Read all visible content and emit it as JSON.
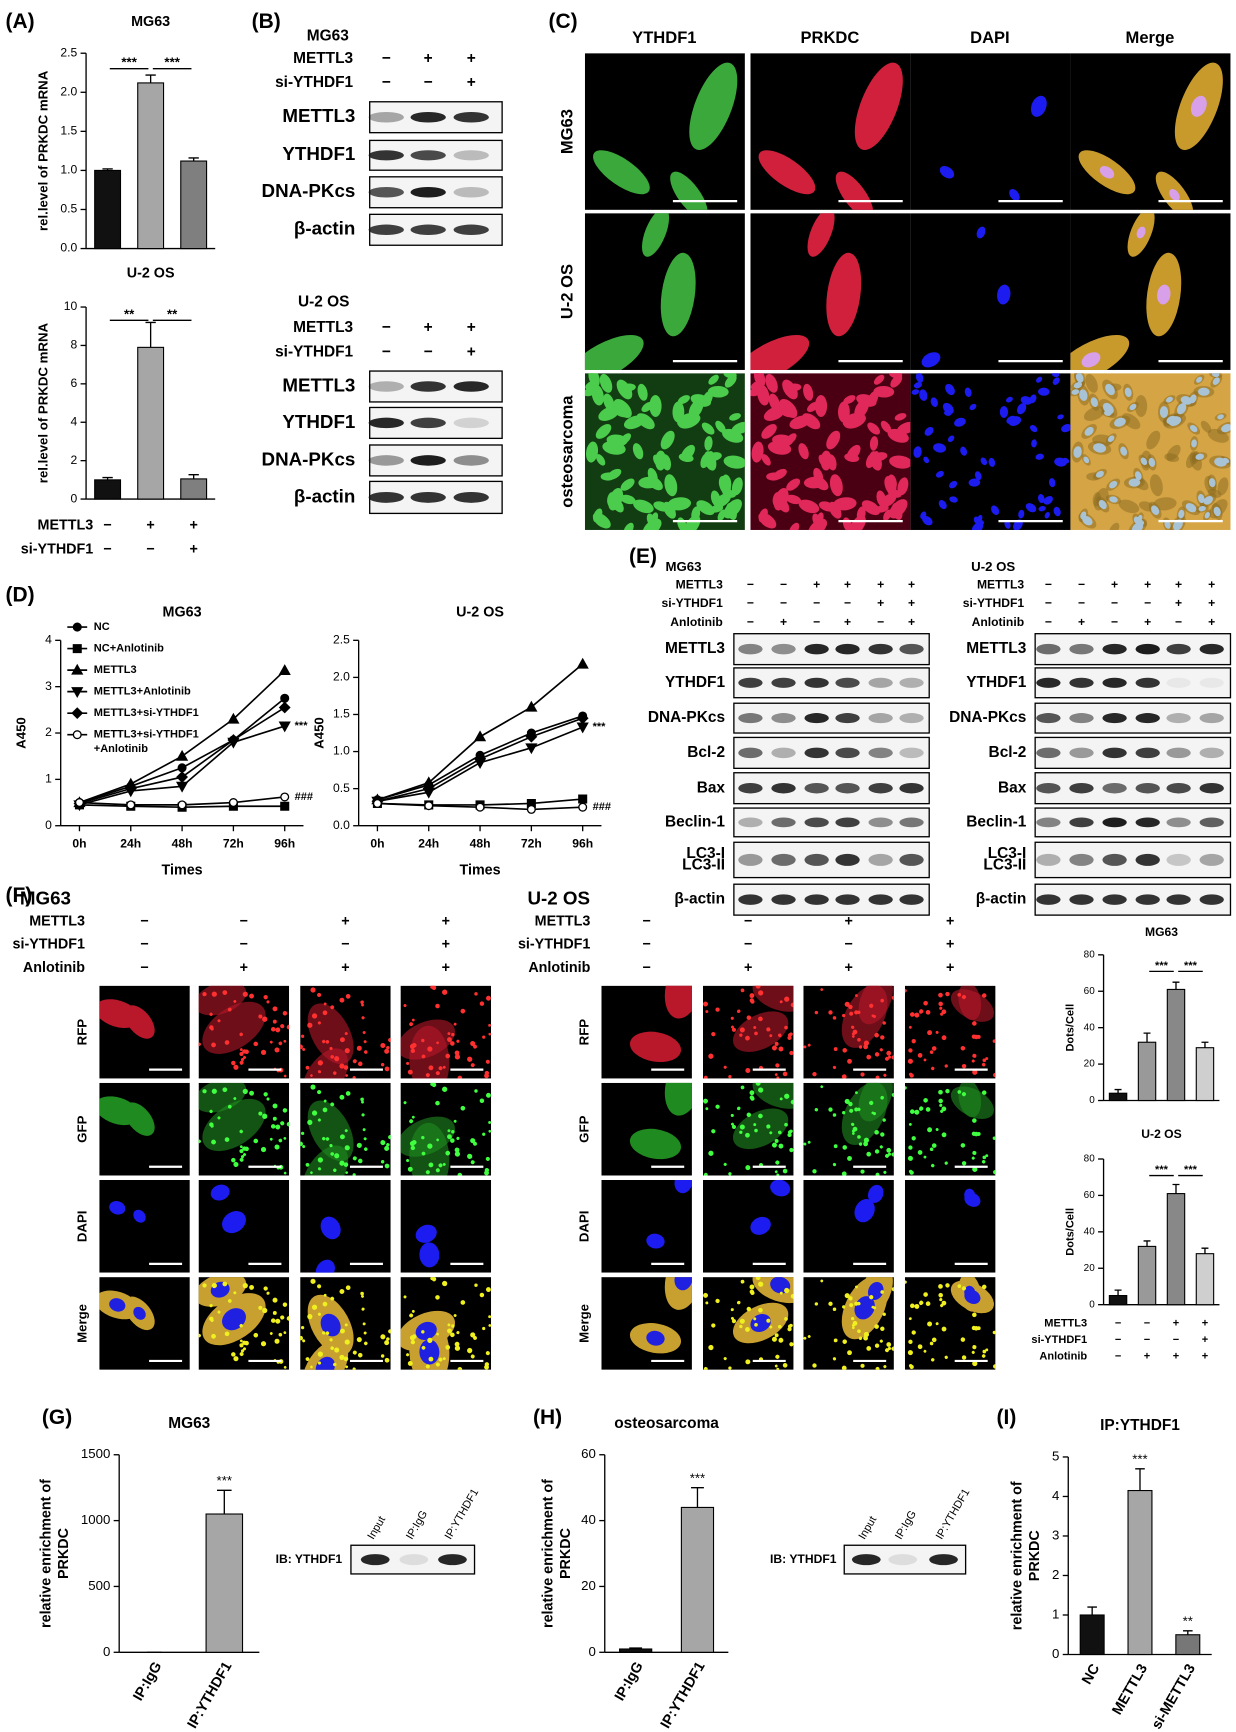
{
  "panel_labels": [
    "(A)",
    "(B)",
    "(C)",
    "(D)",
    "(E)",
    "(F)",
    "(G)",
    "(H)",
    "(I)"
  ],
  "chart_data": [
    {
      "type": "bar",
      "title": "MG63",
      "ylabel": "rel.level of PRKDC mRNA",
      "values": [
        1.0,
        2.12,
        1.12
      ],
      "errors": [
        0.02,
        0.1,
        0.04
      ],
      "colors": [
        "#111111",
        "#a6a6a6",
        "#7f7f7f"
      ],
      "ylim": [
        0,
        2.5
      ],
      "yticks": [
        {
          "value": 0,
          "label": "0.0"
        },
        {
          "value": 0.5,
          "label": "0.5"
        },
        {
          "value": 1,
          "label": "1.0"
        },
        {
          "value": 1.5,
          "label": "1.5"
        },
        {
          "value": 2,
          "label": "2.0"
        },
        {
          "value": 2.5,
          "label": "2.5"
        }
      ],
      "significance": [
        "***",
        "***"
      ]
    },
    {
      "type": "bar",
      "title": "U-2 OS",
      "ylabel": "rel.level of PRKDC mRNA",
      "values": [
        1.0,
        7.9,
        1.05
      ],
      "errors": [
        0.12,
        1.3,
        0.22
      ],
      "colors": [
        "#111111",
        "#a6a6a6",
        "#7f7f7f"
      ],
      "ylim": [
        0,
        10
      ],
      "yticks": [
        0,
        2,
        4,
        6,
        8,
        10
      ],
      "significance": [
        "**",
        "**"
      ],
      "conditions": [
        {
          "label": "METTL3",
          "signs": [
            "−",
            "+",
            "+"
          ]
        },
        {
          "label": "si-YTHDF1",
          "signs": [
            "−",
            "−",
            "+"
          ]
        }
      ]
    },
    {
      "type": "line",
      "title": "MG63",
      "ylabel": "A450",
      "xlabel": "Times",
      "categories": [
        "0h",
        "24h",
        "48h",
        "72h",
        "96h"
      ],
      "ylim": [
        0,
        4
      ],
      "yticks": [
        0,
        1,
        2,
        3,
        4
      ],
      "series": [
        {
          "name": "NC",
          "marker": "circle",
          "values": [
            0.5,
            0.85,
            1.25,
            1.85,
            2.75
          ]
        },
        {
          "name": "NC+Anlotinib",
          "marker": "square",
          "values": [
            0.45,
            0.42,
            0.4,
            0.42,
            0.42
          ]
        },
        {
          "name": "METTL3",
          "marker": "triangle-up",
          "values": [
            0.5,
            0.9,
            1.5,
            2.3,
            3.35
          ]
        },
        {
          "name": "METTL3+Anlotinib",
          "marker": "triangle-down",
          "values": [
            0.45,
            0.75,
            0.85,
            1.8,
            2.15
          ],
          "end_label": "***"
        },
        {
          "name": "METTL3+si-YTHDF1",
          "marker": "diamond",
          "values": [
            0.48,
            0.8,
            1.05,
            1.85,
            2.55
          ]
        },
        {
          "name": "METTL3+si-YTHDF1 +Anlotinib",
          "marker": "open-circle",
          "values": [
            0.5,
            0.45,
            0.45,
            0.5,
            0.62
          ],
          "end_label": "###"
        }
      ]
    },
    {
      "type": "line",
      "title": "U-2 OS",
      "ylabel": "A450",
      "xlabel": "Times",
      "categories": [
        "0h",
        "24h",
        "48h",
        "72h",
        "96h"
      ],
      "ylim": [
        0,
        2.5
      ],
      "yticks": [
        {
          "value": 0,
          "label": "0.0"
        },
        {
          "value": 0.5,
          "label": "0.5"
        },
        {
          "value": 1,
          "label": "1.0"
        },
        {
          "value": 1.5,
          "label": "1.5"
        },
        {
          "value": 2,
          "label": "2.0"
        },
        {
          "value": 2.5,
          "label": "2.5"
        }
      ],
      "series": [
        {
          "marker": "circle",
          "values": [
            0.35,
            0.55,
            0.95,
            1.25,
            1.48
          ]
        },
        {
          "marker": "square",
          "values": [
            0.3,
            0.28,
            0.28,
            0.3,
            0.36
          ]
        },
        {
          "marker": "triangle-up",
          "values": [
            0.35,
            0.58,
            1.2,
            1.6,
            2.18
          ]
        },
        {
          "marker": "triangle-down",
          "values": [
            0.33,
            0.45,
            0.85,
            1.05,
            1.33
          ],
          "end_label": "***"
        },
        {
          "marker": "diamond",
          "values": [
            0.33,
            0.5,
            0.9,
            1.2,
            1.45
          ]
        },
        {
          "marker": "open-circle",
          "values": [
            0.3,
            0.27,
            0.25,
            0.22,
            0.25
          ],
          "end_label": "###"
        }
      ]
    },
    {
      "type": "bar",
      "title": "MG63",
      "ylabel": "Dots/Cell",
      "values": [
        4,
        32,
        61,
        29
      ],
      "errors": [
        2,
        5,
        4,
        3
      ],
      "colors": [
        "#111111",
        "#999999",
        "#888888",
        "#cfcfcf"
      ],
      "ylim": [
        0,
        80
      ],
      "yticks": [
        0,
        20,
        40,
        60,
        80
      ],
      "significance": [
        "***",
        "***"
      ]
    },
    {
      "type": "bar",
      "title": "U-2 OS",
      "ylabel": "Dots/Cell",
      "values": [
        5,
        32,
        61,
        28
      ],
      "errors": [
        3,
        3,
        5,
        3
      ],
      "colors": [
        "#111111",
        "#999999",
        "#888888",
        "#cfcfcf"
      ],
      "ylim": [
        0,
        80
      ],
      "yticks": [
        0,
        20,
        40,
        60,
        80
      ],
      "significance": [
        "***",
        "***"
      ],
      "conditions": [
        {
          "label": "METTL3",
          "signs": [
            "−",
            "−",
            "+",
            "+"
          ]
        },
        {
          "label": "si-YTHDF1",
          "signs": [
            "−",
            "−",
            "−",
            "+"
          ]
        },
        {
          "label": "Anlotinib",
          "signs": [
            "−",
            "+",
            "+",
            "+"
          ]
        }
      ]
    },
    {
      "type": "bar",
      "title": "MG63",
      "ylabel": "relative enrichment of PRKDC",
      "categories": [
        "IP:IgG",
        "IP:YTHDF1"
      ],
      "values": [
        0,
        1050
      ],
      "errors": [
        0,
        180
      ],
      "colors": [
        "#111111",
        "#a6a6a6"
      ],
      "ylim": [
        0,
        1500
      ],
      "yticks": [
        0,
        500,
        1000,
        1500
      ],
      "bar_labels": [
        null,
        "***"
      ]
    },
    {
      "type": "bar",
      "title": "osteosarcoma",
      "ylabel": "relative enrichment of PRKDC",
      "categories": [
        "IP:IgG",
        "IP:YTHDF1"
      ],
      "values": [
        1,
        44
      ],
      "errors": [
        0.3,
        6
      ],
      "colors": [
        "#111111",
        "#a6a6a6"
      ],
      "ylim": [
        0,
        60
      ],
      "yticks": [
        0,
        20,
        40,
        60
      ],
      "bar_labels": [
        null,
        "***"
      ]
    },
    {
      "type": "bar",
      "title": "IP:YTHDF1",
      "ylabel": "relative enrichment of PRKDC",
      "categories": [
        "NC",
        "METTL3",
        "si-METTL3"
      ],
      "values": [
        1,
        4.15,
        0.5
      ],
      "errors": [
        0.2,
        0.55,
        0.1
      ],
      "colors": [
        "#111111",
        "#a6a6a6",
        "#777777"
      ],
      "ylim": [
        0,
        5
      ],
      "yticks": [
        0,
        1,
        2,
        3,
        4,
        5
      ],
      "bar_labels": [
        null,
        "***",
        "**"
      ]
    }
  ],
  "blot_b": [
    {
      "title": "MG63",
      "conditions": [
        {
          "label": "METTL3",
          "signs": [
            "−",
            "+",
            "+"
          ]
        },
        {
          "label": "si-YTHDF1",
          "signs": [
            "−",
            "−",
            "+"
          ]
        }
      ],
      "rows": [
        "METTL3",
        "YTHDF1",
        "DNA-PKcs",
        "β-actin"
      ]
    },
    {
      "title": "U-2 OS",
      "conditions": [
        {
          "label": "METTL3",
          "signs": [
            "−",
            "+",
            "+"
          ]
        },
        {
          "label": "si-YTHDF1",
          "signs": [
            "−",
            "−",
            "+"
          ]
        }
      ],
      "rows": [
        "METTL3",
        "YTHDF1",
        "DNA-PKcs",
        "β-actin"
      ]
    }
  ],
  "micrographs_c": {
    "columns": [
      "YTHDF1",
      "PRKDC",
      "DAPI",
      "Merge"
    ],
    "rows": [
      "MG63",
      "U-2 OS",
      "osteosarcoma"
    ]
  },
  "blot_e": [
    {
      "title": "MG63",
      "conditions": [
        {
          "label": "METTL3",
          "signs": [
            "−",
            "−",
            "+",
            "+",
            "+",
            "+"
          ]
        },
        {
          "label": "si-YTHDF1",
          "signs": [
            "−",
            "−",
            "−",
            "−",
            "+",
            "+"
          ]
        },
        {
          "label": "Anlotinib",
          "signs": [
            "−",
            "+",
            "−",
            "+",
            "−",
            "+"
          ]
        }
      ],
      "rows": [
        "METTL3",
        "YTHDF1",
        "DNA-PKcs",
        "Bcl-2",
        "Bax",
        "Beclin-1",
        "LC3-I LC3-II",
        "β-actin"
      ]
    },
    {
      "title": "U-2 OS",
      "conditions": [
        {
          "label": "METTL3",
          "signs": [
            "−",
            "−",
            "+",
            "+",
            "+",
            "+"
          ]
        },
        {
          "label": "si-YTHDF1",
          "signs": [
            "−",
            "−",
            "−",
            "−",
            "+",
            "+"
          ]
        },
        {
          "label": "Anlotinib",
          "signs": [
            "−",
            "+",
            "−",
            "+",
            "−",
            "+"
          ]
        }
      ],
      "rows": [
        "METTL3",
        "YTHDF1",
        "DNA-PKcs",
        "Bcl-2",
        "Bax",
        "Beclin-1",
        "LC3-I LC3-II",
        "β-actin"
      ]
    }
  ],
  "micrographs_f": [
    {
      "title": "MG63",
      "conditions": [
        {
          "label": "METTL3",
          "signs": [
            "−",
            "−",
            "+",
            "+"
          ]
        },
        {
          "label": "si-YTHDF1",
          "signs": [
            "−",
            "−",
            "−",
            "+"
          ]
        },
        {
          "label": "Anlotinib",
          "signs": [
            "−",
            "+",
            "+",
            "+"
          ]
        }
      ],
      "rows": [
        "RFP",
        "GFP",
        "DAPI",
        "Merge"
      ]
    },
    {
      "title": "U-2 OS",
      "conditions": [
        {
          "label": "METTL3",
          "signs": [
            "−",
            "−",
            "+",
            "+"
          ]
        },
        {
          "label": "si-YTHDF1",
          "signs": [
            "−",
            "−",
            "−",
            "+"
          ]
        },
        {
          "label": "Anlotinib",
          "signs": [
            "−",
            "+",
            "+",
            "+"
          ]
        }
      ],
      "rows": [
        "RFP",
        "GFP",
        "DAPI",
        "Merge"
      ]
    }
  ],
  "ip_blots": [
    {
      "lanes": [
        "Input",
        "IP:IgG",
        "IP:YTHDF1"
      ],
      "antibody": "IB: YTHDF1"
    },
    {
      "lanes": [
        "Input",
        "IP:IgG",
        "IP:YTHDF1"
      ],
      "antibody": "IB: YTHDF1"
    }
  ]
}
